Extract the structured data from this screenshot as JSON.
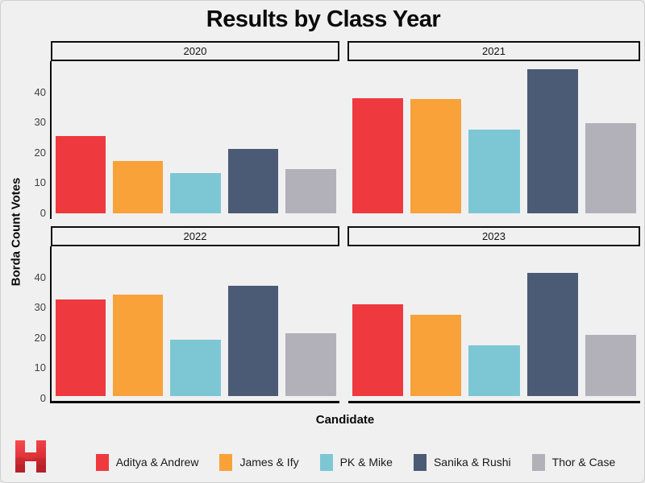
{
  "title": "Results by Class Year",
  "axes": {
    "x_title": "Candidate",
    "y_title": "Borda Count Votes"
  },
  "chart_data": {
    "type": "bar",
    "faceted": true,
    "title": "Results by Class Year",
    "xlabel": "Candidate",
    "ylabel": "Borda Count Votes",
    "categories": [
      "Aditya & Andrew",
      "James & Ify",
      "PK & Mike",
      "Sanika & Rushi",
      "Thor & Case"
    ],
    "series_colors": [
      "#ee3a3f",
      "#f8a239",
      "#7dc7d4",
      "#4b5a75",
      "#b2b1b9"
    ],
    "facets": [
      {
        "label": "2020",
        "values": [
          25.5,
          17.3,
          13.3,
          21.4,
          14.7
        ]
      },
      {
        "label": "2021",
        "values": [
          38.0,
          37.8,
          27.8,
          47.5,
          29.7
        ]
      },
      {
        "label": "2022",
        "values": [
          31.9,
          33.5,
          18.7,
          36.4,
          20.7
        ]
      },
      {
        "label": "2023",
        "values": [
          30.3,
          26.8,
          16.8,
          40.7,
          20.3
        ]
      }
    ],
    "yticks": [
      0,
      10,
      20,
      30,
      40
    ],
    "ylim": [
      0,
      50
    ],
    "grid": false,
    "legend_position": "bottom"
  },
  "legend_note": "legend swatch colors map 1:1 to series_colors and categories",
  "colors": {
    "background": "#f0f0f1",
    "axis_line": "#0b0b0b",
    "strip_border": "#0d0d0d",
    "tick_text": "#404040",
    "logo_red": "#d9292f"
  },
  "logo": {
    "name": "hex-h-logo"
  }
}
